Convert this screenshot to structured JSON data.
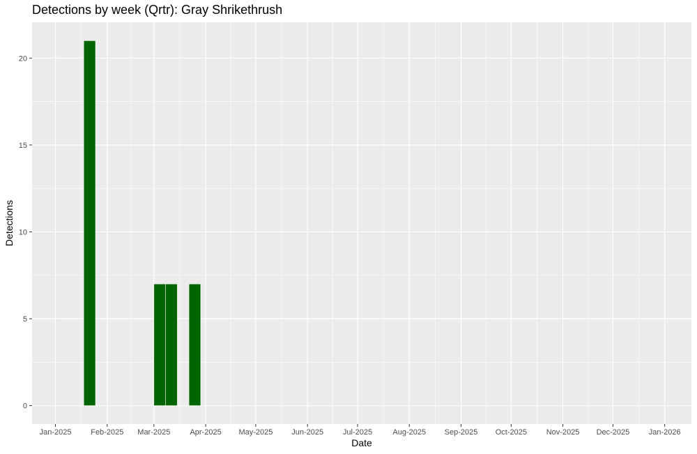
{
  "chart_data": {
    "type": "bar",
    "title": "Detections by week (Qrtr): Gray Shrikethrush",
    "xlabel": "Date",
    "ylabel": "Detections",
    "x_is_date": true,
    "xlim": [
      "2024-12-18",
      "2026-01-17"
    ],
    "ylim": [
      -1.06,
      22.06
    ],
    "y_ticks": [
      0,
      5,
      10,
      15,
      20
    ],
    "x_ticks": [
      {
        "date": "2025-01-01",
        "label": "Jan-2025"
      },
      {
        "date": "2025-02-01",
        "label": "Feb-2025"
      },
      {
        "date": "2025-03-01",
        "label": "Mar-2025"
      },
      {
        "date": "2025-04-01",
        "label": "Apr-2025"
      },
      {
        "date": "2025-05-01",
        "label": "May-2025"
      },
      {
        "date": "2025-06-01",
        "label": "Jun-2025"
      },
      {
        "date": "2025-07-01",
        "label": "Jul-2025"
      },
      {
        "date": "2025-08-01",
        "label": "Aug-2025"
      },
      {
        "date": "2025-09-01",
        "label": "Sep-2025"
      },
      {
        "date": "2025-10-01",
        "label": "Oct-2025"
      },
      {
        "date": "2025-11-01",
        "label": "Nov-2025"
      },
      {
        "date": "2025-12-01",
        "label": "Dec-2025"
      },
      {
        "date": "2026-01-01",
        "label": "Jan-2026"
      }
    ],
    "bars": [
      {
        "week_start": "2025-01-18",
        "week_end": "2025-01-24",
        "value": 21
      },
      {
        "week_start": "2025-03-01",
        "week_end": "2025-03-07",
        "value": 7
      },
      {
        "week_start": "2025-03-08",
        "week_end": "2025-03-14",
        "value": 7
      },
      {
        "week_start": "2025-03-22",
        "week_end": "2025-03-28",
        "value": 7
      }
    ],
    "grid": true,
    "colors": {
      "bar": "#006400",
      "panel": "#ebebeb",
      "grid_major": "#ffffff"
    }
  }
}
